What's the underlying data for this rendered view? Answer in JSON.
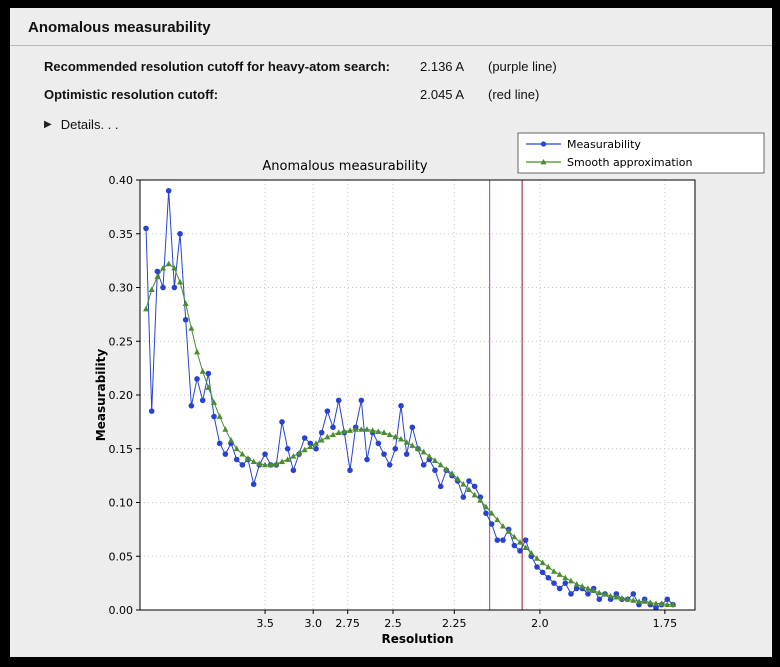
{
  "panel": {
    "title": "Anomalous measurability",
    "rows": [
      {
        "label": "Recommended resolution cutoff for heavy-atom search:",
        "value": "2.136 A",
        "note": "(purple line)"
      },
      {
        "label": "Optimistic resolution cutoff:",
        "value": "2.045 A",
        "note": "(red line)"
      }
    ],
    "details_icon": "▶",
    "details_label": "Details. . ."
  },
  "chart_data": {
    "type": "line",
    "title": "Anomalous measurability",
    "xlabel": "Resolution",
    "ylabel": "Measurability",
    "x_scale": "inverse_resolution_squared",
    "ylim": [
      0.0,
      0.4
    ],
    "y_ticks": [
      0.0,
      0.05,
      0.1,
      0.15,
      0.2,
      0.25,
      0.3,
      0.35,
      0.4
    ],
    "y_tick_labels": [
      "0.00",
      "0.05",
      "0.10",
      "0.15",
      "0.20",
      "0.25",
      "0.30",
      "0.35",
      "0.40"
    ],
    "x_ticks": [
      3.5,
      3.0,
      2.75,
      2.5,
      2.25,
      2.0,
      1.75
    ],
    "x_tick_labels": [
      "3.5",
      "3.0",
      "2.75",
      "2.5",
      "2.25",
      "2.0",
      "1.75"
    ],
    "plot_s_range": [
      0.005,
      0.345
    ],
    "s_start": 0.0087,
    "s_end": 0.3315,
    "grid": true,
    "legend_position": "top-right",
    "colors": {
      "grid": "#c6c6c6",
      "spine": "#000000",
      "plot_bg": "#ffffff",
      "figure_bg": "#ededed"
    },
    "vlines": [
      {
        "name": "purple-cutoff-line",
        "resolution": 2.136,
        "color": "#bb55c8"
      },
      {
        "name": "red-cutoff-line",
        "resolution": 2.045,
        "color": "#a04040"
      }
    ],
    "legend": [
      {
        "name": "Measurability",
        "color": "#2743d0",
        "marker": "circle"
      },
      {
        "name": "Smooth approximation",
        "color": "#4a8c2f",
        "marker": "triangle"
      }
    ],
    "series": [
      {
        "name": "Measurability",
        "color": "#2743d0",
        "marker": "circle",
        "values": [
          0.355,
          0.185,
          0.315,
          0.3,
          0.39,
          0.3,
          0.35,
          0.27,
          0.19,
          0.215,
          0.195,
          0.22,
          0.18,
          0.155,
          0.145,
          0.155,
          0.14,
          0.135,
          0.14,
          0.117,
          0.135,
          0.145,
          0.135,
          0.135,
          0.175,
          0.15,
          0.13,
          0.145,
          0.16,
          0.155,
          0.15,
          0.165,
          0.185,
          0.17,
          0.195,
          0.165,
          0.13,
          0.17,
          0.195,
          0.14,
          0.165,
          0.155,
          0.145,
          0.135,
          0.15,
          0.19,
          0.145,
          0.17,
          0.15,
          0.135,
          0.14,
          0.13,
          0.115,
          0.13,
          0.125,
          0.12,
          0.105,
          0.12,
          0.115,
          0.105,
          0.09,
          0.08,
          0.065,
          0.065,
          0.075,
          0.06,
          0.055,
          0.065,
          0.05,
          0.04,
          0.035,
          0.03,
          0.025,
          0.02,
          0.025,
          0.015,
          0.02,
          0.02,
          0.015,
          0.02,
          0.01,
          0.015,
          0.01,
          0.015,
          0.01,
          0.01,
          0.015,
          0.005,
          0.01,
          0.005,
          0.002,
          0.005,
          0.01,
          0.005
        ]
      },
      {
        "name": "Smooth approximation",
        "color": "#4a8c2f",
        "marker": "triangle",
        "values": [
          0.28,
          0.298,
          0.31,
          0.318,
          0.322,
          0.318,
          0.305,
          0.285,
          0.262,
          0.24,
          0.222,
          0.207,
          0.193,
          0.18,
          0.168,
          0.158,
          0.15,
          0.145,
          0.141,
          0.138,
          0.136,
          0.135,
          0.135,
          0.136,
          0.138,
          0.14,
          0.143,
          0.146,
          0.149,
          0.152,
          0.155,
          0.158,
          0.161,
          0.163,
          0.165,
          0.166,
          0.167,
          0.168,
          0.168,
          0.168,
          0.167,
          0.166,
          0.165,
          0.163,
          0.161,
          0.159,
          0.156,
          0.153,
          0.15,
          0.147,
          0.143,
          0.139,
          0.135,
          0.131,
          0.127,
          0.122,
          0.117,
          0.112,
          0.107,
          0.102,
          0.096,
          0.09,
          0.084,
          0.078,
          0.073,
          0.068,
          0.063,
          0.058,
          0.053,
          0.048,
          0.044,
          0.04,
          0.036,
          0.033,
          0.03,
          0.027,
          0.024,
          0.022,
          0.02,
          0.018,
          0.016,
          0.015,
          0.013,
          0.012,
          0.011,
          0.01,
          0.009,
          0.008,
          0.008,
          0.007,
          0.006,
          0.006,
          0.005,
          0.005
        ]
      }
    ]
  }
}
